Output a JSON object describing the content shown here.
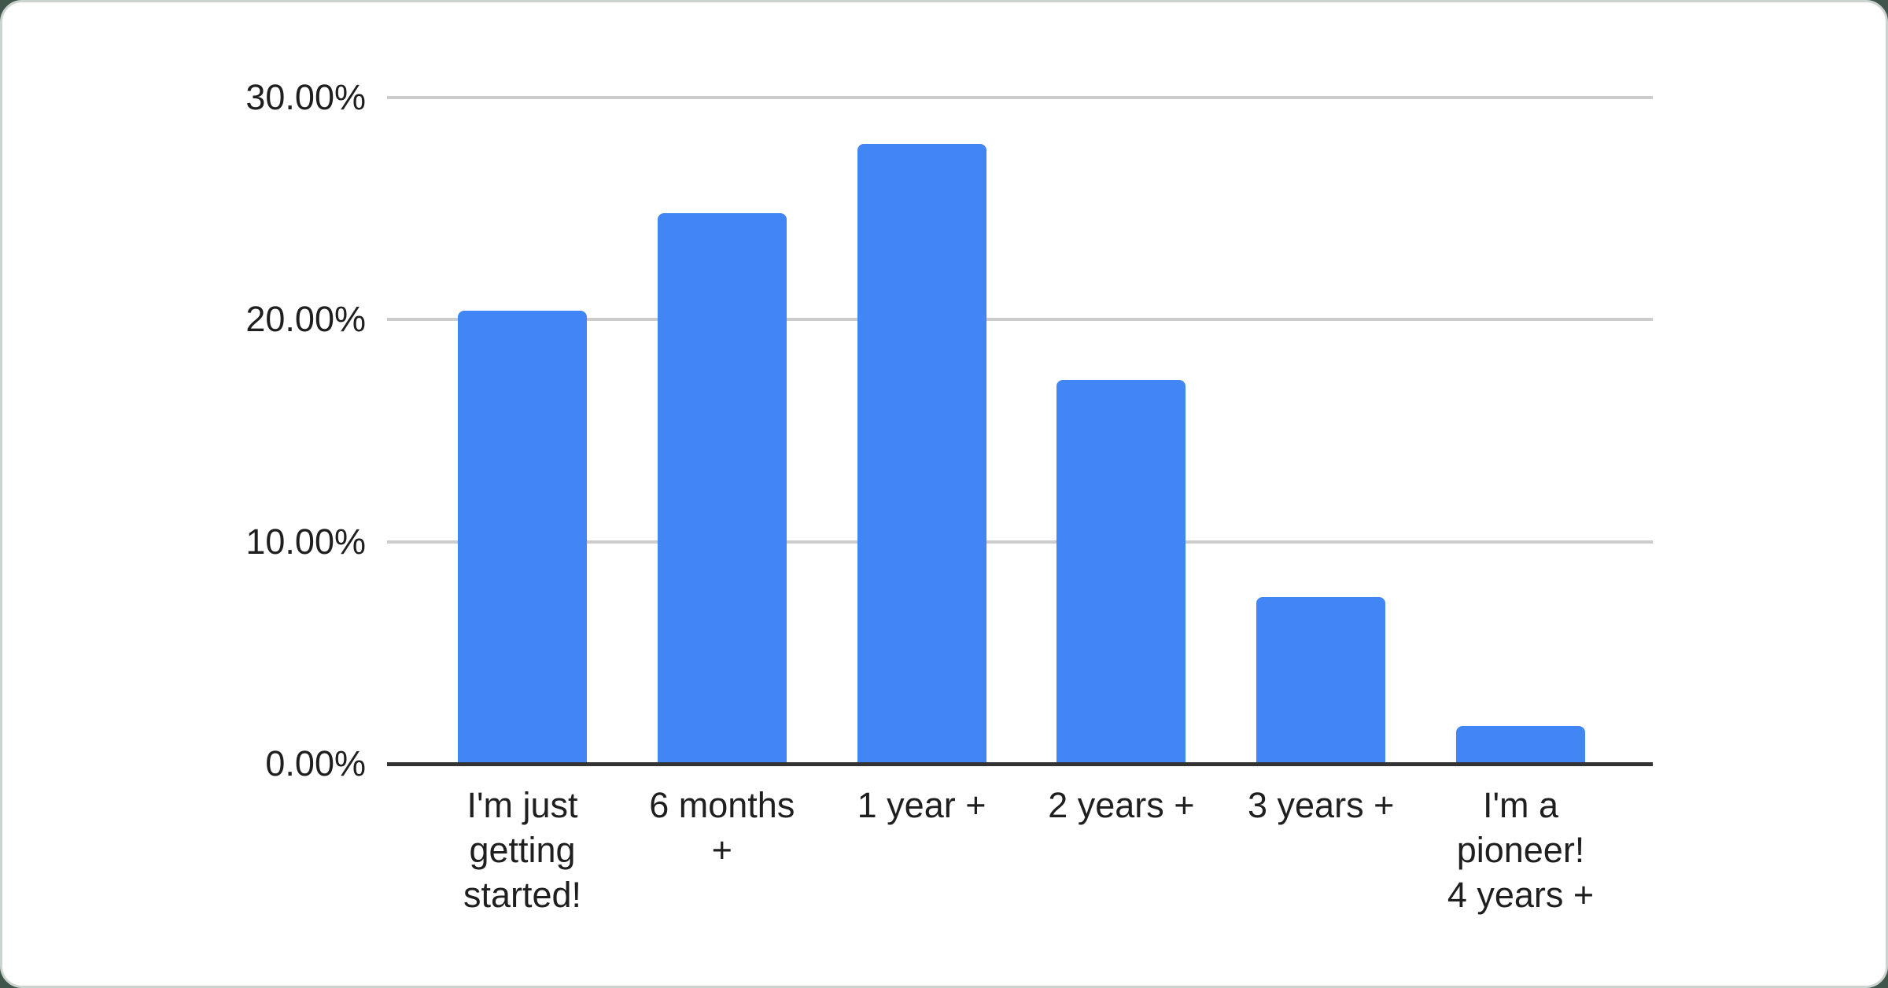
{
  "chart_data": {
    "type": "bar",
    "title": "",
    "xlabel": "",
    "ylabel": "",
    "categories": [
      "I'm just getting started!",
      "6 months +",
      "1 year +",
      "2 years +",
      "3 years +",
      "I'm a pioneer! 4 years +"
    ],
    "category_labels_display": [
      "I'm just\ngetting\nstarted!",
      "6 months\n+",
      "1 year +",
      "2 years +",
      "3 years +",
      "I'm a\npioneer!\n4 years +"
    ],
    "values": [
      20.4,
      24.8,
      27.9,
      17.3,
      7.5,
      1.7
    ],
    "unit": "%",
    "ylim": [
      0,
      30
    ],
    "y_ticks": [
      {
        "value": 30,
        "label": "30.00%"
      },
      {
        "value": 20,
        "label": "20.00%"
      },
      {
        "value": 10,
        "label": "10.00%"
      },
      {
        "value": 0,
        "label": "0.00%"
      }
    ],
    "grid": true,
    "legend_position": "none",
    "colors": {
      "bar": "#4285f4",
      "gridline": "#cccccc",
      "axis_line": "#333333",
      "tick_label": "#1f1f1f",
      "card_background": "#ffffff",
      "card_border": "#ccd4d0",
      "page_background": "#41564b"
    }
  }
}
